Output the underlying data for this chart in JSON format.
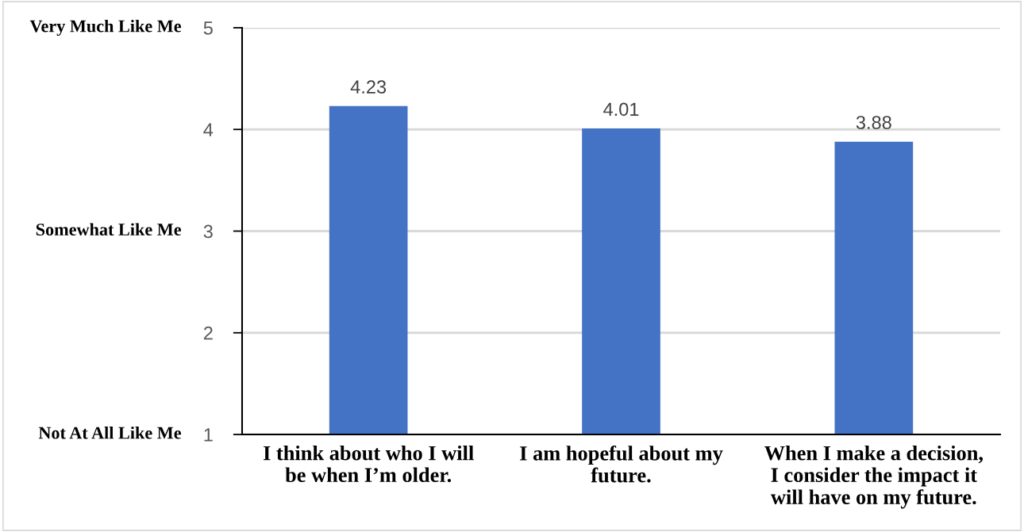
{
  "chart_data": {
    "type": "bar",
    "categories": [
      "I think about who I will\nbe when I’m older.",
      "I am hopeful about my\nfuture.",
      "When I make a decision,\nI consider the impact it\nwill have on my future."
    ],
    "values": [
      4.23,
      4.01,
      3.88
    ],
    "color": "#4472c4",
    "data_labels": true,
    "ylim": [
      1,
      5
    ],
    "yticks": [
      1,
      2,
      3,
      4,
      5
    ],
    "grid": "y",
    "annotations": [
      "Very Much Like Me",
      "Somewhat Like Me",
      "Not At All Like Me"
    ]
  }
}
